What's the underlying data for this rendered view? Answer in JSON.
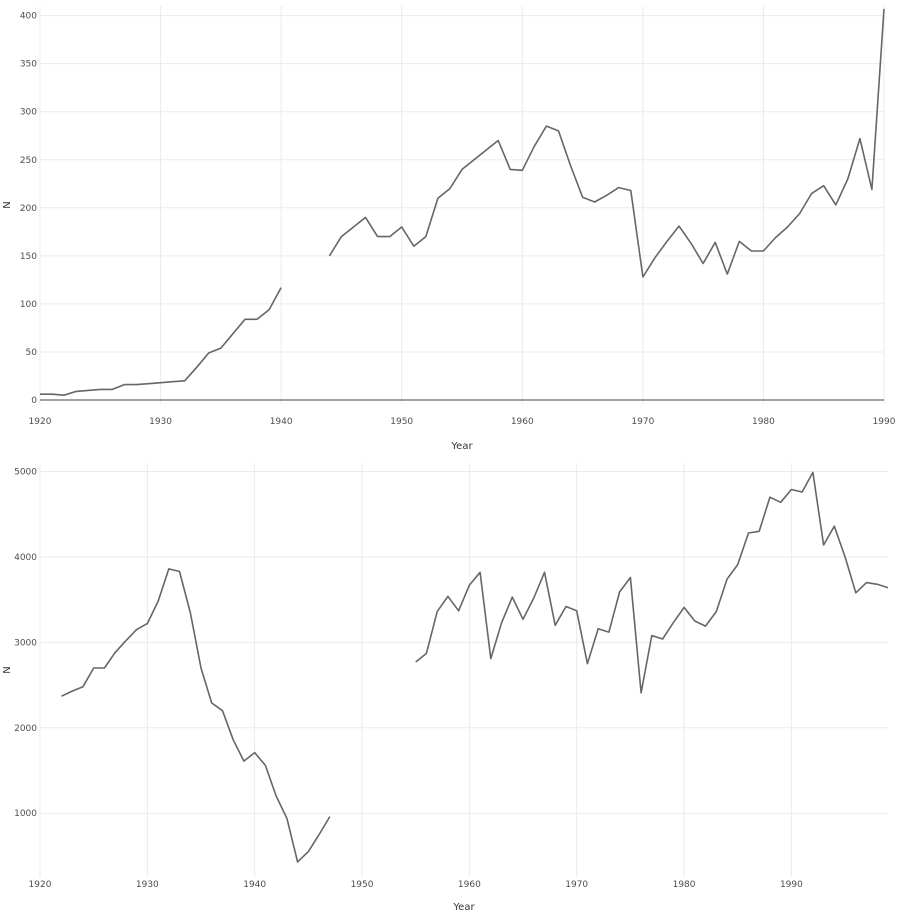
{
  "chart_data": [
    {
      "type": "line",
      "xlabel": "Year",
      "ylabel": "N",
      "xlim": [
        1920,
        1990
      ],
      "ylim": [
        0,
        410
      ],
      "xticks": [
        1920,
        1930,
        1940,
        1950,
        1960,
        1970,
        1980,
        1990
      ],
      "yticks": [
        0,
        50,
        100,
        150,
        200,
        250,
        300,
        350,
        400
      ],
      "zero_line": true,
      "grid": true,
      "line_color": "#666666",
      "series": [
        {
          "segments": [
            [
              [
                1920,
                6
              ],
              [
                1921,
                6
              ],
              [
                1922,
                5
              ],
              [
                1923,
                9
              ],
              [
                1924,
                10
              ],
              [
                1925,
                11
              ],
              [
                1926,
                11
              ],
              [
                1927,
                16
              ],
              [
                1928,
                16
              ],
              [
                1929,
                17
              ],
              [
                1930,
                18
              ],
              [
                1931,
                19
              ],
              [
                1932,
                20
              ],
              [
                1933,
                34
              ],
              [
                1934,
                49
              ],
              [
                1935,
                54
              ],
              [
                1936,
                69
              ],
              [
                1937,
                84
              ],
              [
                1938,
                84
              ],
              [
                1939,
                94
              ],
              [
                1940,
                117
              ]
            ],
            [
              [
                1944,
                150
              ],
              [
                1945,
                170
              ],
              [
                1946,
                180
              ],
              [
                1947,
                190
              ],
              [
                1948,
                170
              ],
              [
                1949,
                170
              ],
              [
                1950,
                180
              ],
              [
                1951,
                160
              ],
              [
                1952,
                170
              ],
              [
                1953,
                210
              ],
              [
                1954,
                220
              ],
              [
                1955,
                240
              ],
              [
                1956,
                250
              ],
              [
                1957,
                260
              ],
              [
                1958,
                270
              ],
              [
                1959,
                240
              ],
              [
                1960,
                239
              ],
              [
                1961,
                264
              ],
              [
                1962,
                285
              ],
              [
                1963,
                280
              ],
              [
                1964,
                244
              ],
              [
                1965,
                211
              ],
              [
                1966,
                206
              ],
              [
                1967,
                213
              ],
              [
                1968,
                221
              ],
              [
                1969,
                218
              ],
              [
                1970,
                128
              ],
              [
                1971,
                148
              ],
              [
                1972,
                165
              ],
              [
                1973,
                181
              ],
              [
                1974,
                163
              ],
              [
                1975,
                142
              ],
              [
                1976,
                164
              ],
              [
                1977,
                131
              ],
              [
                1978,
                165
              ],
              [
                1979,
                155
              ],
              [
                1980,
                155
              ],
              [
                1981,
                169
              ],
              [
                1982,
                180
              ],
              [
                1983,
                194
              ],
              [
                1984,
                215
              ],
              [
                1985,
                223
              ],
              [
                1986,
                203
              ],
              [
                1987,
                230
              ],
              [
                1988,
                272
              ],
              [
                1989,
                219
              ],
              [
                1990,
                407
              ]
            ]
          ]
        }
      ]
    },
    {
      "type": "line",
      "xlabel": "Year",
      "ylabel": "N",
      "xlim": [
        1920,
        1999
      ],
      "ylim": [
        300,
        5100
      ],
      "xticks": [
        1920,
        1930,
        1940,
        1950,
        1960,
        1970,
        1980,
        1990
      ],
      "yticks": [
        1000,
        2000,
        3000,
        4000,
        5000
      ],
      "zero_line": false,
      "grid": true,
      "line_color": "#666666",
      "series": [
        {
          "segments": [
            [
              [
                1922,
                2370
              ],
              [
                1923,
                2430
              ],
              [
                1924,
                2480
              ],
              [
                1925,
                2700
              ],
              [
                1926,
                2700
              ],
              [
                1927,
                2880
              ],
              [
                1928,
                3020
              ],
              [
                1929,
                3150
              ],
              [
                1930,
                3220
              ],
              [
                1931,
                3480
              ],
              [
                1932,
                3860
              ],
              [
                1933,
                3830
              ],
              [
                1934,
                3350
              ],
              [
                1935,
                2700
              ],
              [
                1936,
                2290
              ],
              [
                1937,
                2200
              ],
              [
                1938,
                1860
              ],
              [
                1939,
                1610
              ],
              [
                1940,
                1710
              ],
              [
                1941,
                1560
              ],
              [
                1942,
                1200
              ],
              [
                1943,
                940
              ],
              [
                1944,
                430
              ],
              [
                1945,
                550
              ],
              [
                1946,
                750
              ],
              [
                1947,
                960
              ]
            ],
            [
              [
                1955,
                2770
              ],
              [
                1956,
                2870
              ],
              [
                1957,
                3360
              ],
              [
                1958,
                3540
              ],
              [
                1959,
                3370
              ],
              [
                1960,
                3670
              ],
              [
                1961,
                3820
              ],
              [
                1962,
                2810
              ],
              [
                1963,
                3230
              ],
              [
                1964,
                3530
              ],
              [
                1965,
                3270
              ],
              [
                1966,
                3520
              ],
              [
                1967,
                3820
              ],
              [
                1968,
                3200
              ],
              [
                1969,
                3420
              ],
              [
                1970,
                3370
              ],
              [
                1971,
                2750
              ],
              [
                1972,
                3160
              ],
              [
                1973,
                3120
              ],
              [
                1974,
                3590
              ],
              [
                1975,
                3760
              ],
              [
                1976,
                2410
              ],
              [
                1977,
                3080
              ],
              [
                1978,
                3040
              ],
              [
                1979,
                3230
              ],
              [
                1980,
                3410
              ],
              [
                1981,
                3250
              ],
              [
                1982,
                3190
              ],
              [
                1983,
                3360
              ],
              [
                1984,
                3740
              ],
              [
                1985,
                3910
              ],
              [
                1986,
                4280
              ],
              [
                1987,
                4300
              ],
              [
                1988,
                4700
              ],
              [
                1989,
                4640
              ],
              [
                1990,
                4790
              ],
              [
                1991,
                4760
              ],
              [
                1992,
                4990
              ],
              [
                1993,
                4140
              ],
              [
                1994,
                4360
              ],
              [
                1995,
                4000
              ],
              [
                1996,
                3580
              ],
              [
                1997,
                3700
              ],
              [
                1998,
                3680
              ],
              [
                1999,
                3640
              ]
            ]
          ]
        }
      ]
    }
  ]
}
